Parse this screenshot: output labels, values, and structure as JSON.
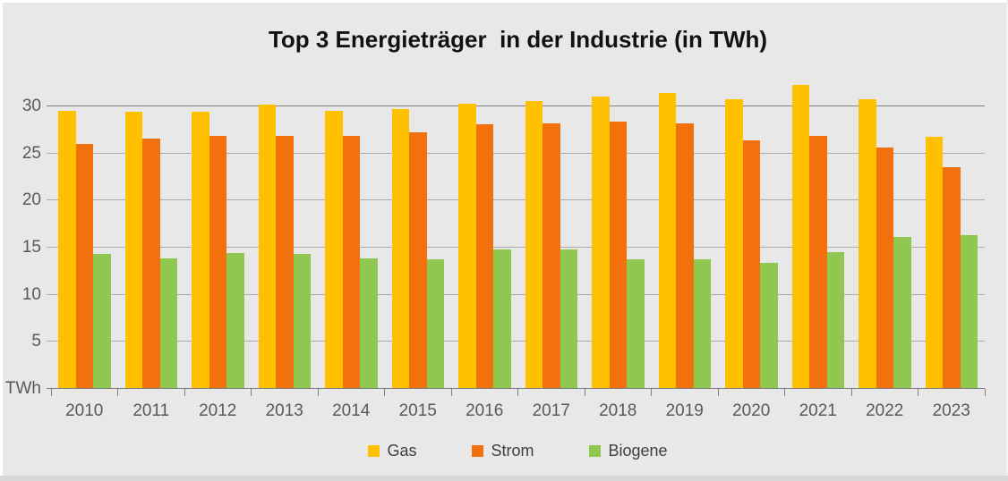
{
  "chart_data": {
    "type": "bar",
    "title": "Top 3 Energieträger  in der Industrie (in TWh)",
    "xlabel": "",
    "ylabel": "TWh",
    "unit_label": "TWh",
    "categories": [
      "2010",
      "2011",
      "2012",
      "2013",
      "2014",
      "2015",
      "2016",
      "2017",
      "2018",
      "2019",
      "2020",
      "2021",
      "2022",
      "2023"
    ],
    "series": [
      {
        "name": "Gas",
        "color": "#FFC000",
        "values": [
          29.5,
          29.4,
          29.4,
          30.2,
          29.5,
          29.7,
          30.3,
          30.6,
          31.1,
          31.4,
          30.8,
          32.3,
          30.8,
          26.8
        ]
      },
      {
        "name": "Strom",
        "color": "#F2710D",
        "values": [
          26.0,
          26.6,
          26.9,
          26.9,
          26.9,
          27.3,
          28.1,
          28.2,
          28.4,
          28.2,
          26.4,
          26.9,
          25.6,
          23.6
        ]
      },
      {
        "name": "Biogene",
        "color": "#8FC751",
        "values": [
          14.3,
          13.9,
          14.4,
          14.3,
          13.9,
          13.8,
          14.8,
          14.8,
          13.8,
          13.8,
          13.4,
          14.5,
          16.1,
          16.3
        ]
      }
    ],
    "yticks": [
      5,
      10,
      15,
      20,
      25,
      30
    ],
    "ylim": [
      0,
      33.4
    ],
    "grid": true,
    "legend_position": "bottom",
    "background_color": "#E8E8E8",
    "gridline_color": "#ABABAB",
    "major_gridline_color": "#7F7F7F",
    "axis_text_color": "#595959"
  }
}
